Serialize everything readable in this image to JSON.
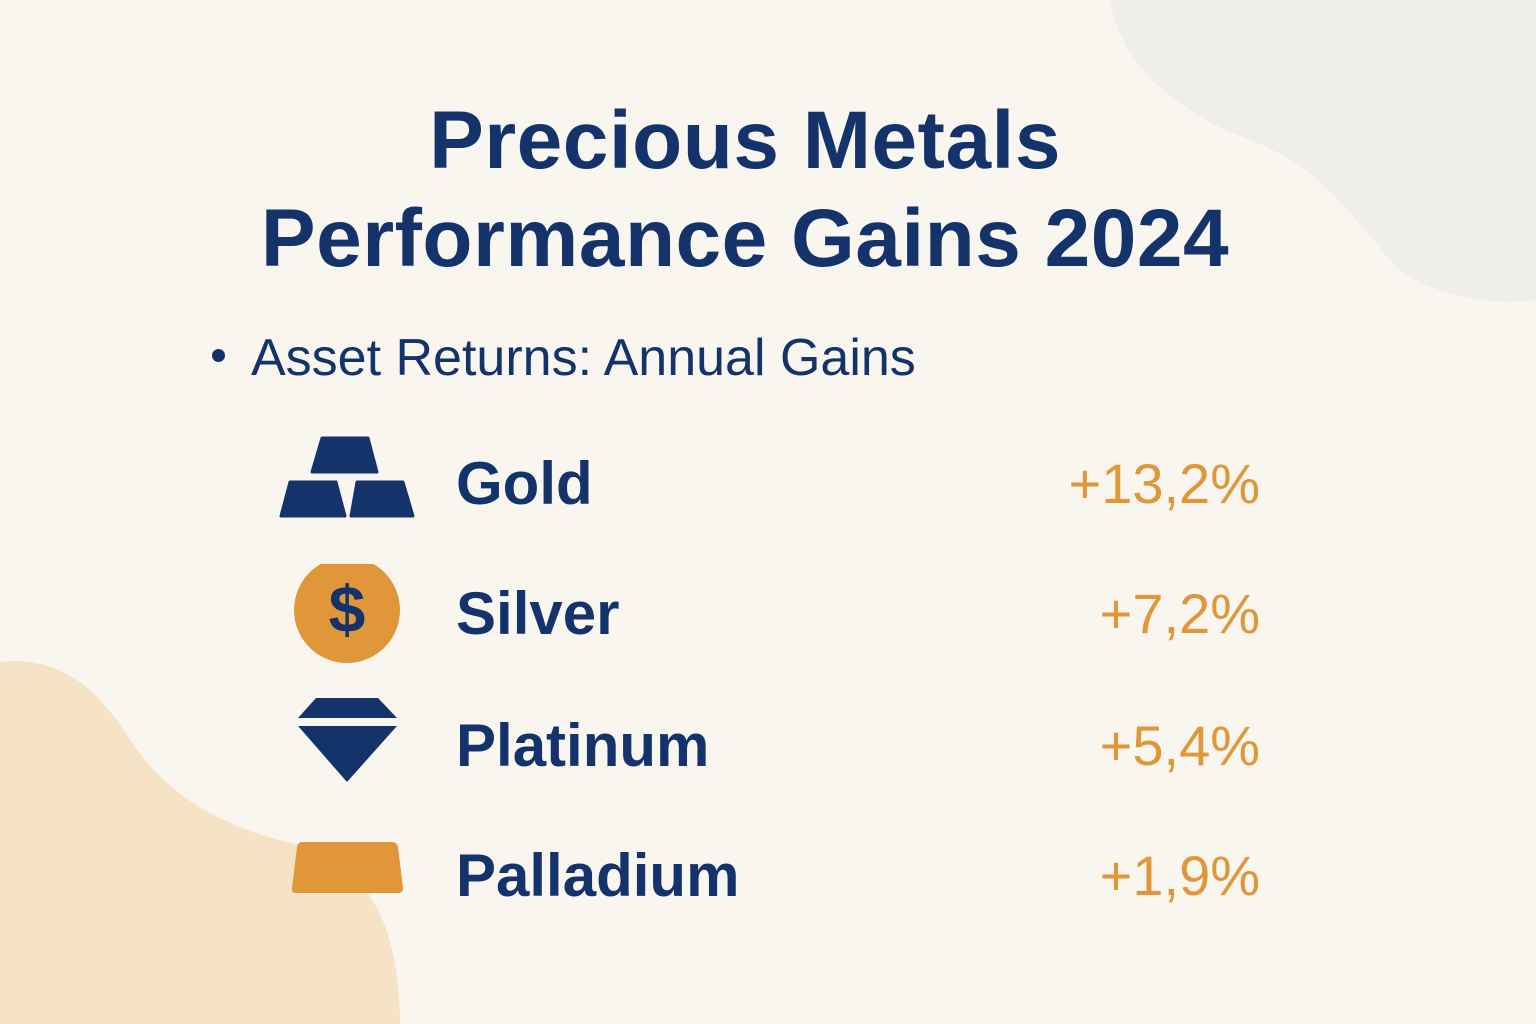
{
  "title_line1": "Precious Metals",
  "title_line2": "Performance Gains 2024",
  "subtitle": "Asset Returns: Annual Gains",
  "colors": {
    "primary": "#15336b",
    "accent": "#e0973a",
    "background": "#f9f6f0",
    "blob_warm": "#f6e3c6",
    "blob_gray": "#efeeea"
  },
  "items": [
    {
      "name": "Gold",
      "value": "+13,2%",
      "icon": "gold-bars-icon"
    },
    {
      "name": "Silver",
      "value": "+7,2%",
      "icon": "dollar-coin-icon"
    },
    {
      "name": "Platinum",
      "value": "+5,4%",
      "icon": "diamond-icon"
    },
    {
      "name": "Palladium",
      "value": "+1,9%",
      "icon": "ingot-icon"
    }
  ]
}
